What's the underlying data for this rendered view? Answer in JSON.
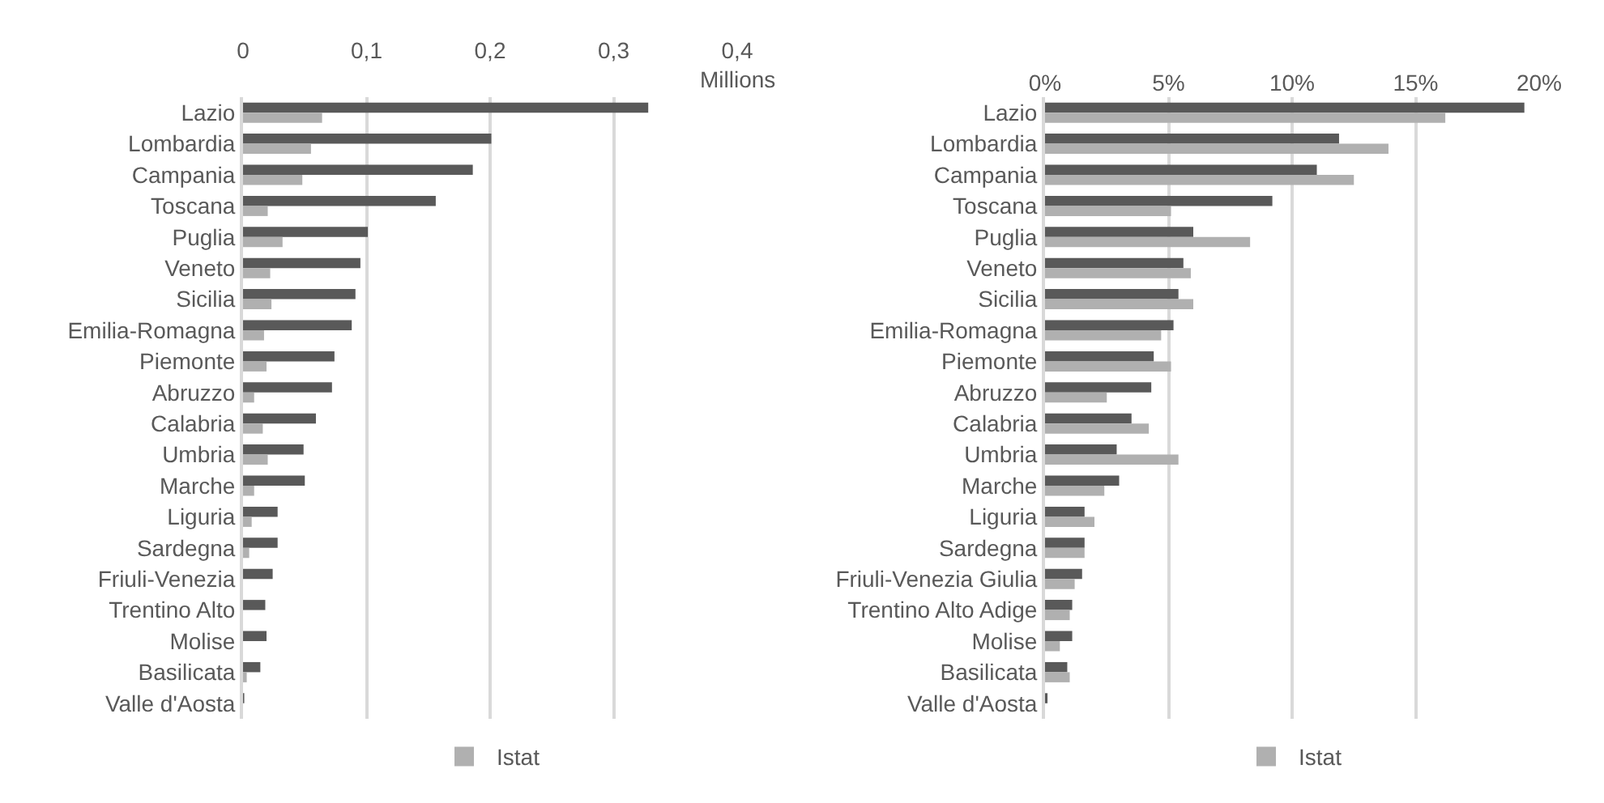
{
  "chart_data": [
    {
      "type": "bar",
      "orientation": "horizontal",
      "xlabel": "Millions",
      "categories": [
        "Lazio",
        "Lombardia",
        "Campania",
        "Toscana",
        "Puglia",
        "Veneto",
        "Sicilia",
        "Emilia-Romagna",
        "Piemonte",
        "Abruzzo",
        "Calabria",
        "Umbria",
        "Marche",
        "Liguria",
        "Sardegna",
        "Friuli-Venezia",
        "Trentino Alto",
        "Molise",
        "Basilicata",
        "Valle d'Aosta"
      ],
      "series": [
        {
          "color": "#595959",
          "values": [
            0.328,
            0.201,
            0.186,
            0.156,
            0.101,
            0.095,
            0.091,
            0.088,
            0.074,
            0.072,
            0.059,
            0.049,
            0.05,
            0.028,
            0.028,
            0.024,
            0.018,
            0.019,
            0.014,
            0.001
          ]
        },
        {
          "name": "Istat",
          "color": "#b0b0b0",
          "values": [
            0.064,
            0.055,
            0.048,
            0.02,
            0.032,
            0.022,
            0.023,
            0.017,
            0.019,
            0.009,
            0.016,
            0.02,
            0.009,
            0.007,
            0.005,
            null,
            null,
            null,
            0.003,
            null
          ]
        }
      ],
      "xlim": [
        0,
        0.4
      ],
      "xticks": [
        0,
        {
          "value": 0.1,
          "label": "0,1"
        },
        {
          "value": 0.2,
          "label": "0,2"
        },
        {
          "value": 0.3,
          "label": "0,3"
        },
        {
          "value": 0.4,
          "label": "0,4"
        }
      ],
      "grid": "x",
      "legend": "bottom"
    },
    {
      "type": "bar",
      "orientation": "horizontal",
      "categories": [
        "Lazio",
        "Lombardia",
        "Campania",
        "Toscana",
        "Puglia",
        "Veneto",
        "Sicilia",
        "Emilia-Romagna",
        "Piemonte",
        "Abruzzo",
        "Calabria",
        "Umbria",
        "Marche",
        "Liguria",
        "Sardegna",
        "Friuli-Venezia Giulia",
        "Trentino Alto Adige",
        "Molise",
        "Basilicata",
        "Valle d'Aosta"
      ],
      "series": [
        {
          "color": "#595959",
          "values": [
            19.4,
            11.9,
            11.0,
            9.2,
            6.0,
            5.6,
            5.4,
            5.2,
            4.4,
            4.3,
            3.5,
            2.9,
            3.0,
            1.6,
            1.6,
            1.5,
            1.1,
            1.1,
            0.9,
            0.1
          ]
        },
        {
          "name": "Istat",
          "color": "#b0b0b0",
          "values": [
            16.2,
            13.9,
            12.5,
            5.1,
            8.3,
            5.9,
            6.0,
            4.7,
            5.1,
            2.5,
            4.2,
            5.4,
            2.4,
            2.0,
            1.6,
            1.2,
            1.0,
            0.6,
            1.0,
            null
          ]
        }
      ],
      "xlim": [
        0,
        20
      ],
      "xticks": [
        {
          "value": 0,
          "label": "0%"
        },
        {
          "value": 5,
          "label": "5%"
        },
        {
          "value": 10,
          "label": "10%"
        },
        {
          "value": 15,
          "label": "15%"
        },
        {
          "value": 20,
          "label": "20%"
        }
      ],
      "grid": "x",
      "legend": "bottom"
    }
  ]
}
